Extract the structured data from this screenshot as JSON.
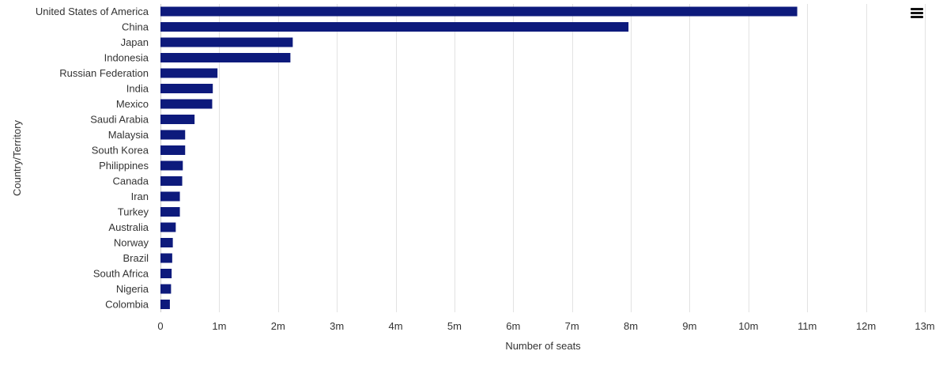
{
  "chart_data": {
    "type": "bar",
    "orientation": "horizontal",
    "categories": [
      "United States of America",
      "China",
      "Japan",
      "Indonesia",
      "Russian Federation",
      "India",
      "Mexico",
      "Saudi Arabia",
      "Malaysia",
      "South Korea",
      "Philippines",
      "Canada",
      "Iran",
      "Turkey",
      "Australia",
      "Norway",
      "Brazil",
      "South Africa",
      "Nigeria",
      "Colombia"
    ],
    "values": [
      10830000,
      7960000,
      2250000,
      2210000,
      970000,
      890000,
      880000,
      580000,
      420000,
      420000,
      380000,
      370000,
      330000,
      330000,
      260000,
      210000,
      200000,
      190000,
      180000,
      160000
    ],
    "xlabel": "Number of seats",
    "ylabel": "Country/Territory",
    "xlim": [
      0,
      13000000
    ],
    "xticks": [
      {
        "value": 0,
        "label": "0"
      },
      {
        "value": 1000000,
        "label": "1m"
      },
      {
        "value": 2000000,
        "label": "2m"
      },
      {
        "value": 3000000,
        "label": "3m"
      },
      {
        "value": 4000000,
        "label": "4m"
      },
      {
        "value": 5000000,
        "label": "5m"
      },
      {
        "value": 6000000,
        "label": "6m"
      },
      {
        "value": 7000000,
        "label": "7m"
      },
      {
        "value": 8000000,
        "label": "8m"
      },
      {
        "value": 9000000,
        "label": "9m"
      },
      {
        "value": 10000000,
        "label": "10m"
      },
      {
        "value": 11000000,
        "label": "11m"
      },
      {
        "value": 12000000,
        "label": "12m"
      },
      {
        "value": 13000000,
        "label": "13m"
      }
    ],
    "grid": "vertical",
    "legend": "none",
    "bar_color": "#0d1a7c"
  },
  "menu": {
    "icon": "hamburger-menu-icon"
  }
}
